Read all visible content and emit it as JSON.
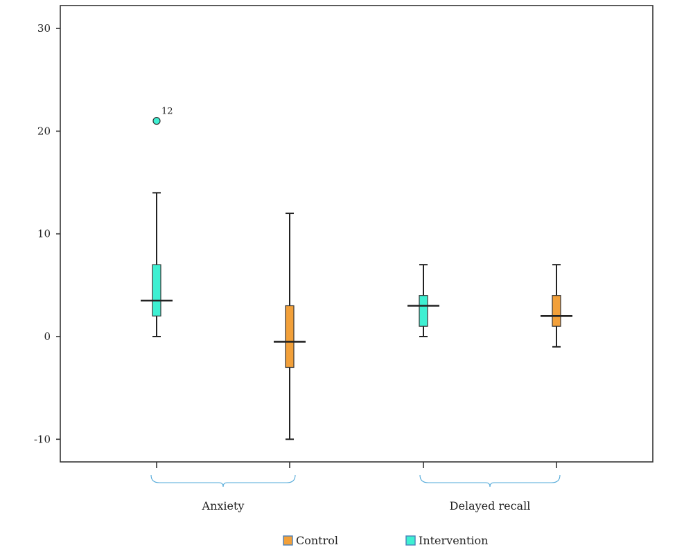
{
  "chart_data": {
    "type": "box",
    "ylim": [
      -12,
      32
    ],
    "yticks": [
      -10,
      0,
      10,
      20,
      30
    ],
    "ytick_labels": [
      "-10",
      "0",
      "10",
      "20",
      "30"
    ],
    "groups": [
      "Anxiety",
      "Delayed recall"
    ],
    "series": [
      {
        "name": "Control",
        "color": "#f2a03a"
      },
      {
        "name": "Intervention",
        "color": "#3ef0d2"
      }
    ],
    "boxes": [
      {
        "group": "Anxiety",
        "series": "Intervention",
        "min": 0,
        "q1": 2,
        "median": 3.5,
        "q3": 7,
        "max": 14
      },
      {
        "group": "Anxiety",
        "series": "Control",
        "min": -10,
        "q1": -3,
        "median": -0.5,
        "q3": 3,
        "max": 12
      },
      {
        "group": "Delayed recall",
        "series": "Intervention",
        "min": 0,
        "q1": 1,
        "median": 3,
        "q3": 4,
        "max": 7
      },
      {
        "group": "Delayed recall",
        "series": "Control",
        "min": -1,
        "q1": 1,
        "median": 2,
        "q3": 4,
        "max": 7
      }
    ],
    "outliers": [
      {
        "group": "Anxiety",
        "series": "Intervention",
        "value": 21,
        "label": "12"
      }
    ],
    "legend": {
      "position": "bottom",
      "items": [
        "Control",
        "Intervention"
      ]
    },
    "grid": false
  }
}
